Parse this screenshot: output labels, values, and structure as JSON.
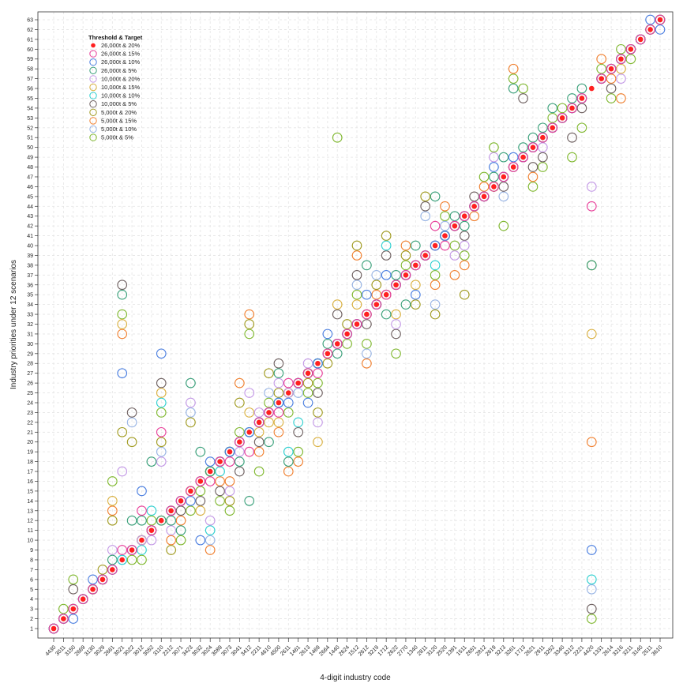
{
  "chart_data": {
    "type": "scatter",
    "xlabel": "4-digit industry code",
    "ylabel": "Industry priorities under 12 scenarios",
    "ylim": [
      1,
      63
    ],
    "grid": true,
    "legend": {
      "title": "Threshold & Target",
      "placement": "top-left"
    },
    "series": [
      {
        "name": "26,000t & 20%",
        "color": "#ff2020",
        "marker": "filled-dot"
      },
      {
        "name": "26,000t & 15%",
        "color": "#e8409a",
        "marker": "ring"
      },
      {
        "name": "26,000t & 10%",
        "color": "#4a7ee0",
        "marker": "ring"
      },
      {
        "name": "26,000t & 5%",
        "color": "#3aa07a",
        "marker": "ring"
      },
      {
        "name": "10,000t & 20%",
        "color": "#c49ae6",
        "marker": "ring"
      },
      {
        "name": "10,000t & 15%",
        "color": "#d9b040",
        "marker": "ring"
      },
      {
        "name": "10,000t & 10%",
        "color": "#30d0d0",
        "marker": "ring"
      },
      {
        "name": "10,000t & 5%",
        "color": "#6e6060",
        "marker": "ring"
      },
      {
        "name": "5,000t & 20%",
        "color": "#a09a20",
        "marker": "ring"
      },
      {
        "name": "5,000t & 15%",
        "color": "#f08030",
        "marker": "ring"
      },
      {
        "name": "5,000t & 10%",
        "color": "#98b4e4",
        "marker": "ring"
      },
      {
        "name": "5,000t & 5%",
        "color": "#80b830",
        "marker": "ring"
      }
    ],
    "categories": [
      "4430",
      "3011",
      "3150",
      "2669",
      "3130",
      "3029",
      "2661",
      "3021",
      "3022",
      "3012",
      "3052",
      "3110",
      "2212",
      "3071",
      "3423",
      "3032",
      "3024",
      "3089",
      "3073",
      "3041",
      "3412",
      "2211",
      "4610",
      "4500",
      "2611",
      "1461",
      "2613",
      "1469",
      "2664",
      "1440",
      "2624",
      "1512",
      "2612",
      "3219",
      "1712",
      "2622",
      "2770",
      "1340",
      "2811",
      "3120",
      "2520",
      "1391",
      "1511",
      "2651",
      "2812",
      "2619",
      "3213",
      "3261",
      "1713",
      "2621",
      "2911",
      "3252",
      "3340",
      "3212",
      "2221",
      "4420",
      "1331",
      "2614",
      "3216",
      "3211",
      "3140",
      "2511",
      "3610"
    ],
    "ranks_by_category": [
      [
        1,
        1,
        1,
        1,
        1,
        1,
        1,
        1,
        1,
        1,
        1,
        1
      ],
      [
        2,
        2,
        2,
        2,
        2,
        2,
        2,
        2,
        2,
        2,
        2,
        3
      ],
      [
        3,
        3,
        2,
        3,
        3,
        3,
        3,
        5,
        3,
        3,
        3,
        6
      ],
      [
        4,
        4,
        4,
        4,
        4,
        4,
        4,
        4,
        4,
        4,
        4,
        4
      ],
      [
        5,
        5,
        6,
        5,
        5,
        5,
        5,
        5,
        5,
        5,
        5,
        5
      ],
      [
        6,
        6,
        6,
        6,
        6,
        6,
        6,
        6,
        7,
        6,
        6,
        6
      ],
      [
        7,
        7,
        7,
        8,
        9,
        14,
        7,
        7,
        12,
        13,
        7,
        16
      ],
      [
        8,
        9,
        27,
        35,
        17,
        32,
        8,
        36,
        21,
        31,
        8,
        33
      ],
      [
        9,
        9,
        9,
        12,
        9,
        9,
        9,
        23,
        20,
        9,
        22,
        8
      ],
      [
        10,
        13,
        15,
        12,
        10,
        10,
        9,
        10,
        10,
        10,
        10,
        8
      ],
      [
        11,
        11,
        11,
        18,
        10,
        11,
        13,
        11,
        11,
        11,
        11,
        12
      ],
      [
        12,
        21,
        29,
        12,
        18,
        25,
        24,
        26,
        20,
        12,
        19,
        23
      ],
      [
        13,
        13,
        13,
        12,
        11,
        13,
        13,
        13,
        9,
        10,
        13,
        13
      ],
      [
        14,
        14,
        14,
        11,
        14,
        14,
        14,
        13,
        14,
        12,
        14,
        10
      ],
      [
        15,
        15,
        14,
        26,
        24,
        15,
        15,
        15,
        22,
        15,
        23,
        13
      ],
      [
        16,
        16,
        10,
        19,
        16,
        13,
        16,
        14,
        16,
        16,
        16,
        15
      ],
      [
        17,
        16,
        18,
        17,
        12,
        17,
        11,
        17,
        17,
        9,
        10,
        17
      ],
      [
        18,
        18,
        18,
        18,
        18,
        18,
        17,
        15,
        18,
        16,
        18,
        14
      ],
      [
        19,
        18,
        19,
        19,
        15,
        19,
        19,
        19,
        14,
        16,
        19,
        13
      ],
      [
        20,
        20,
        20,
        18,
        19,
        20,
        20,
        17,
        24,
        26,
        20,
        21
      ],
      [
        21,
        19,
        21,
        14,
        25,
        23,
        21,
        21,
        32,
        33,
        21,
        31
      ],
      [
        22,
        22,
        22,
        22,
        23,
        21,
        22,
        20,
        22,
        19,
        22,
        17
      ],
      [
        23,
        23,
        23,
        20,
        23,
        22,
        23,
        23,
        27,
        23,
        25,
        24
      ],
      [
        24,
        23,
        24,
        27,
        26,
        22,
        24,
        28,
        25,
        21,
        24,
        24
      ],
      [
        25,
        26,
        24,
        18,
        25,
        25,
        19,
        25,
        25,
        17,
        25,
        23
      ],
      [
        26,
        26,
        26,
        26,
        26,
        26,
        22,
        21,
        26,
        18,
        25,
        19
      ],
      [
        27,
        27,
        24,
        27,
        28,
        27,
        27,
        27,
        26,
        27,
        27,
        25
      ],
      [
        28,
        27,
        28,
        28,
        22,
        20,
        28,
        25,
        23,
        28,
        28,
        26
      ],
      [
        29,
        29,
        31,
        30,
        29,
        29,
        29,
        29,
        28,
        29,
        29,
        29
      ],
      [
        30,
        30,
        30,
        29,
        30,
        34,
        30,
        33,
        30,
        30,
        30,
        51
      ],
      [
        31,
        31,
        31,
        31,
        31,
        31,
        31,
        31,
        32,
        31,
        31,
        30
      ],
      [
        32,
        32,
        32,
        32,
        32,
        34,
        32,
        37,
        40,
        39,
        36,
        35
      ],
      [
        33,
        33,
        35,
        38,
        33,
        33,
        33,
        32,
        33,
        28,
        29,
        30
      ],
      [
        34,
        34,
        34,
        34,
        34,
        34,
        34,
        34,
        36,
        35,
        37,
        34
      ],
      [
        35,
        35,
        37,
        33,
        35,
        35,
        40,
        39,
        41,
        35,
        35,
        35
      ],
      [
        36,
        36,
        36,
        37,
        32,
        33,
        36,
        31,
        36,
        36,
        36,
        29
      ],
      [
        37,
        37,
        37,
        34,
        37,
        37,
        37,
        37,
        39,
        40,
        37,
        38
      ],
      [
        38,
        38,
        35,
        40,
        38,
        36,
        38,
        38,
        34,
        38,
        38,
        38
      ],
      [
        39,
        39,
        39,
        39,
        39,
        39,
        39,
        44,
        45,
        39,
        43,
        39
      ],
      [
        40,
        42,
        40,
        45,
        40,
        40,
        38,
        40,
        33,
        36,
        34,
        37
      ],
      [
        41,
        40,
        41,
        41,
        41,
        41,
        41,
        41,
        41,
        44,
        42,
        43
      ],
      [
        42,
        42,
        42,
        43,
        39,
        42,
        42,
        42,
        42,
        37,
        42,
        40
      ],
      [
        43,
        43,
        43,
        42,
        40,
        43,
        43,
        41,
        35,
        38,
        43,
        39
      ],
      [
        44,
        44,
        44,
        44,
        44,
        44,
        44,
        45,
        44,
        43,
        44,
        44
      ],
      [
        45,
        45,
        45,
        45,
        45,
        45,
        45,
        45,
        45,
        46,
        45,
        47
      ],
      [
        46,
        46,
        48,
        47,
        49,
        46,
        46,
        46,
        46,
        46,
        46,
        50
      ],
      [
        47,
        47,
        47,
        49,
        47,
        47,
        47,
        46,
        47,
        47,
        45,
        42
      ],
      [
        48,
        48,
        49,
        56,
        48,
        48,
        48,
        48,
        48,
        58,
        48,
        57
      ],
      [
        49,
        49,
        49,
        50,
        49,
        49,
        49,
        55,
        49,
        49,
        49,
        56
      ],
      [
        50,
        50,
        50,
        51,
        50,
        50,
        50,
        48,
        50,
        47,
        50,
        46
      ],
      [
        51,
        51,
        51,
        52,
        50,
        51,
        51,
        49,
        51,
        51,
        51,
        48
      ],
      [
        52,
        52,
        52,
        54,
        52,
        52,
        52,
        52,
        52,
        52,
        52,
        53
      ],
      [
        53,
        53,
        53,
        53,
        53,
        53,
        53,
        53,
        53,
        53,
        53,
        54
      ],
      [
        54,
        54,
        54,
        55,
        54,
        54,
        54,
        51,
        54,
        54,
        54,
        49
      ],
      [
        55,
        55,
        55,
        56,
        55,
        55,
        55,
        54,
        55,
        55,
        55,
        52
      ],
      [
        56,
        44,
        9,
        38,
        46,
        31,
        6,
        3,
        38,
        20,
        5,
        2
      ],
      [
        57,
        57,
        57,
        57,
        57,
        57,
        57,
        57,
        57,
        59,
        57,
        58
      ],
      [
        58,
        58,
        58,
        58,
        58,
        58,
        58,
        56,
        58,
        57,
        58,
        55
      ],
      [
        59,
        59,
        59,
        59,
        57,
        58,
        59,
        59,
        59,
        55,
        59,
        60
      ],
      [
        60,
        60,
        60,
        60,
        60,
        60,
        60,
        60,
        60,
        60,
        60,
        59
      ],
      [
        61,
        61,
        61,
        61,
        61,
        61,
        61,
        61,
        61,
        61,
        61,
        61
      ],
      [
        62,
        62,
        63,
        62,
        62,
        62,
        62,
        62,
        62,
        62,
        62,
        62
      ],
      [
        63,
        63,
        62,
        63,
        63,
        63,
        63,
        63,
        63,
        63,
        63,
        63
      ]
    ]
  }
}
